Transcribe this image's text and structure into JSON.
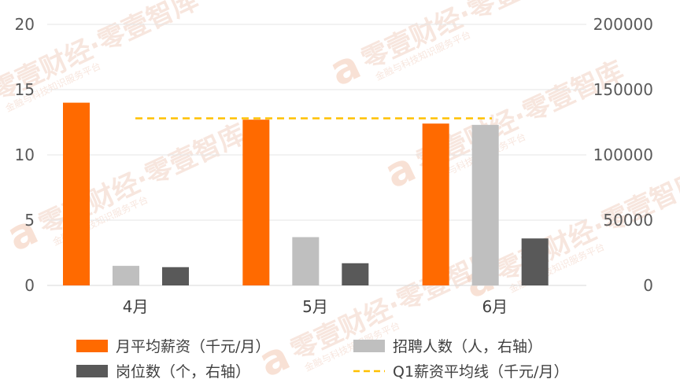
{
  "chart_data": {
    "type": "bar",
    "categories": [
      "4月",
      "5月",
      "6月"
    ],
    "series": [
      {
        "name": "月平均薪资（千元/月）",
        "axis": "left",
        "color": "#ff6a00",
        "values": [
          14,
          12.7,
          12.4
        ]
      },
      {
        "name": "招聘人数（人，右轴）",
        "axis": "right",
        "color": "#bfbfbf",
        "values": [
          15000,
          37000,
          123000
        ]
      },
      {
        "name": "岗位数（个，右轴）",
        "axis": "right",
        "color": "#595959",
        "values": [
          14000,
          17000,
          36000
        ]
      }
    ],
    "reference_line": {
      "name": "Q1薪资平均线（千元/月）",
      "axis": "left",
      "value": 12.8,
      "color": "#ffc000",
      "style": "dashed"
    },
    "y_left": {
      "min": 0,
      "max": 20,
      "ticks": [
        "0",
        "5",
        "10",
        "15",
        "20"
      ]
    },
    "y_right": {
      "min": 0,
      "max": 200000,
      "ticks": [
        "0",
        "50000",
        "100000",
        "150000",
        "200000"
      ]
    },
    "grid": true,
    "legend_position": "bottom"
  },
  "watermark": {
    "text": "零壹财经·零壹智库",
    "subtext": "金融与科技知识服务平台",
    "logo_glyph": "a",
    "color": "#f4c9b4"
  }
}
